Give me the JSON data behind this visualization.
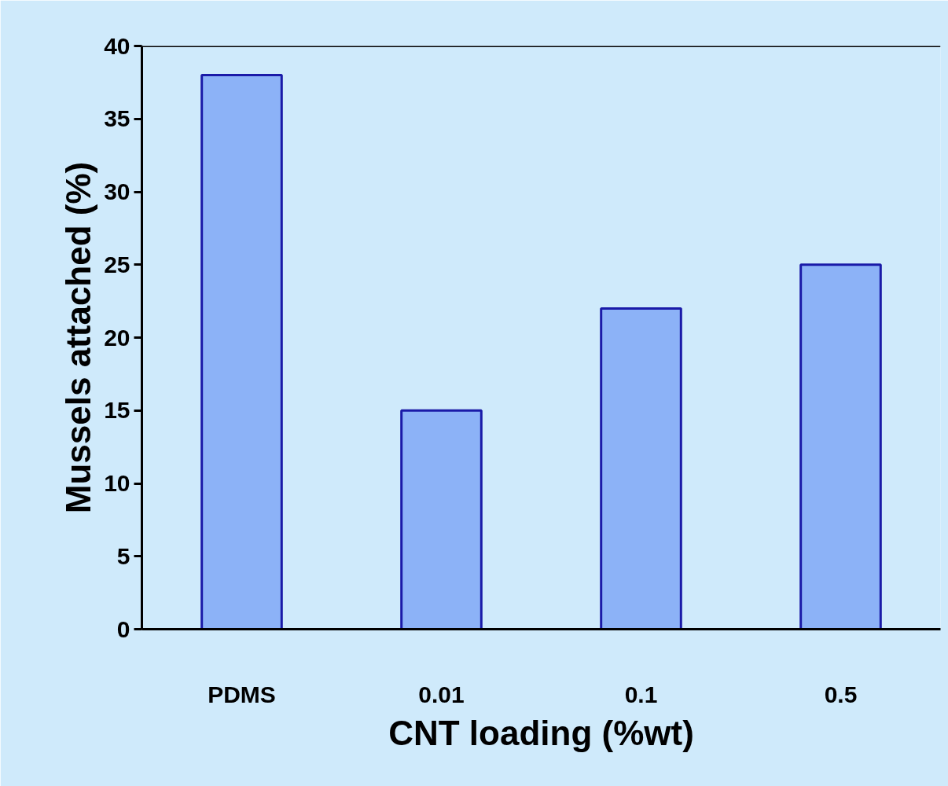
{
  "chart_data": {
    "type": "bar",
    "xlabel": "CNT loading (%wt)",
    "ylabel": "Mussels attached (%)",
    "categories": [
      "PDMS",
      "0.01",
      "0.1",
      "0.5"
    ],
    "values": [
      38,
      15,
      22,
      25
    ],
    "color": "#8cb2f7",
    "ylim": [
      0,
      40
    ],
    "yticks": [
      0,
      5,
      10,
      15,
      20,
      25,
      30,
      35,
      40
    ],
    "grid": false
  }
}
